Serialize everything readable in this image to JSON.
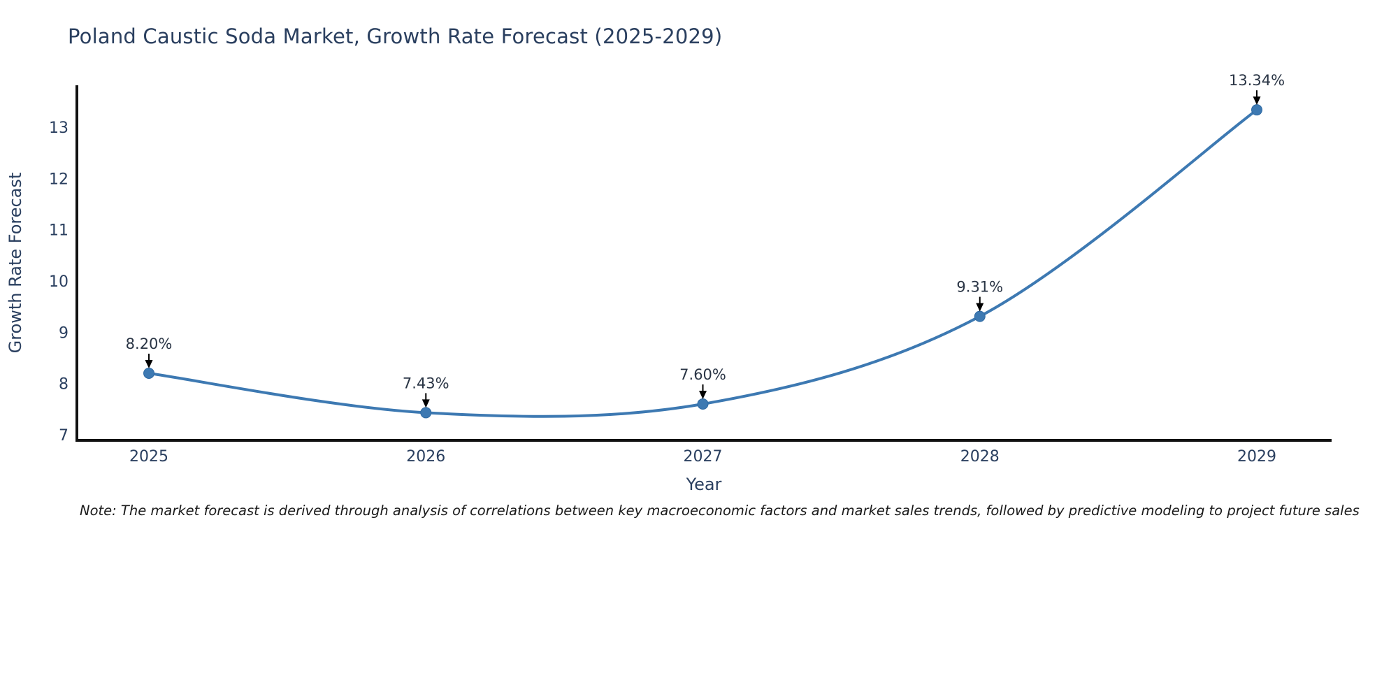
{
  "title": "Poland Caustic Soda Market, Growth Rate Forecast (2025-2029)",
  "note": "Note: The market forecast is derived through analysis of correlations between key macroeconomic factors and market sales trends, followed by predictive modeling to project future sales",
  "chart_data": {
    "type": "line",
    "title": "Poland Caustic Soda Market, Growth Rate Forecast (2025-2029)",
    "x": [
      2025,
      2026,
      2027,
      2028,
      2029
    ],
    "y": [
      8.2,
      7.43,
      7.6,
      9.31,
      13.34
    ],
    "point_labels": [
      "8.20%",
      "7.43%",
      "7.60%",
      "9.31%",
      "13.34%"
    ],
    "xlabel": "Year",
    "ylabel": "Growth Rate Forecast",
    "x_ticks": [
      "2025",
      "2026",
      "2027",
      "2028",
      "2029"
    ],
    "y_ticks": [
      "7",
      "8",
      "9",
      "10",
      "11",
      "12",
      "13"
    ],
    "xlim": [
      2024.74,
      2029.27
    ],
    "ylim": [
      6.89,
      13.82
    ],
    "line_shape": "spline",
    "grid": false,
    "legend": "none",
    "colors": {
      "line": "#3d79b2",
      "marker": "#3d79b2",
      "marker_edge": "#2f6aa3",
      "axis": "#111111",
      "tick_text": "#2a3f5f",
      "annotation_text": "#2a3545",
      "arrow": "#000000",
      "title_text": "#2a3f5f",
      "note_text": "#1a1a1a"
    }
  }
}
